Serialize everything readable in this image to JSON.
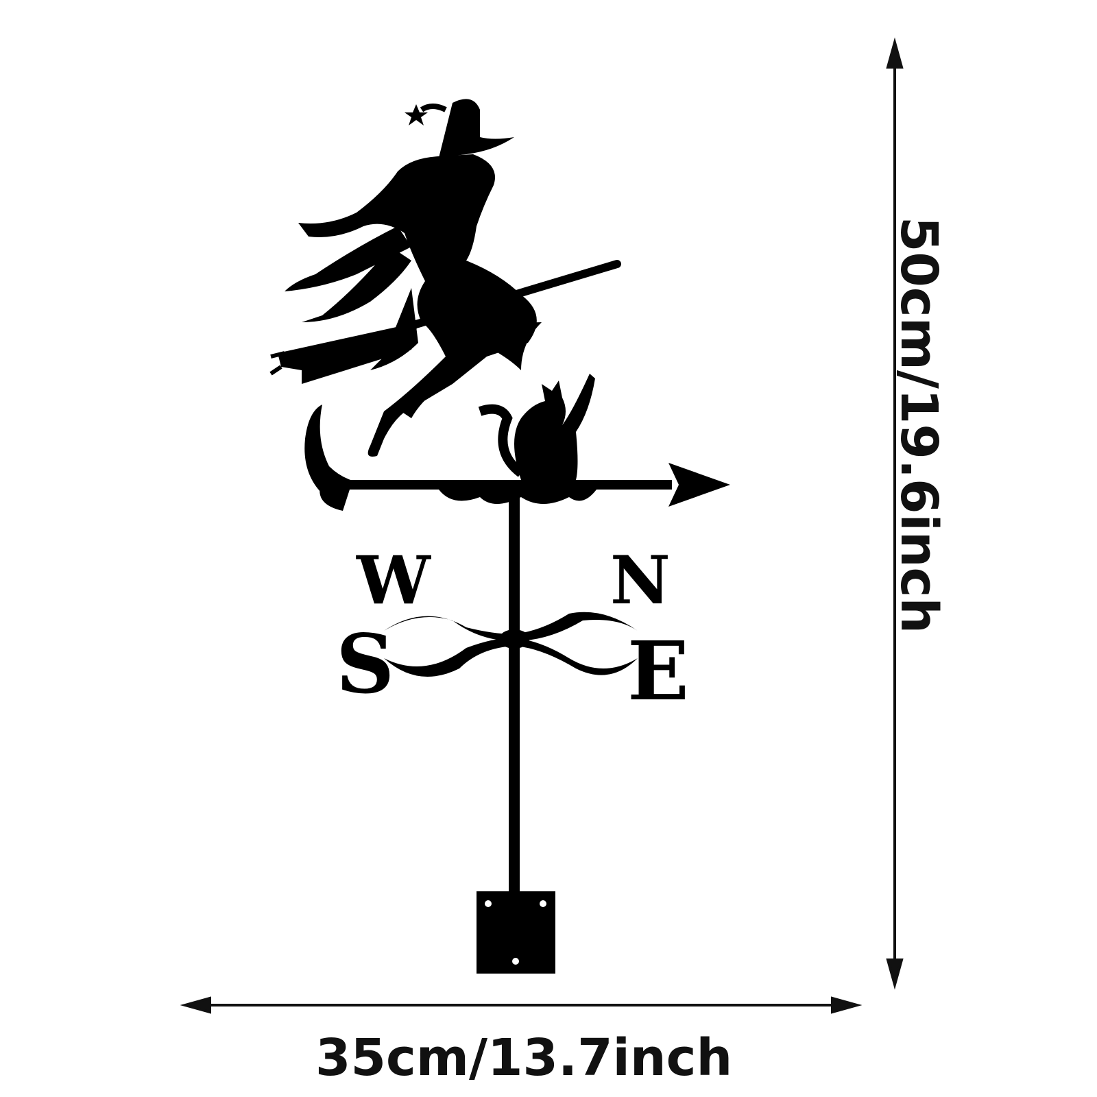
{
  "product": {
    "name": "witch-on-broom-weathervane",
    "color": "#000000",
    "compass_letters": {
      "west": "W",
      "south": "S",
      "north": "N",
      "east": "E"
    }
  },
  "dimensions": {
    "width_label": "35cm/13.7inch",
    "height_label": "50cm/19.6inch"
  },
  "colors": {
    "background": "#ffffff",
    "ink": "#000000"
  }
}
